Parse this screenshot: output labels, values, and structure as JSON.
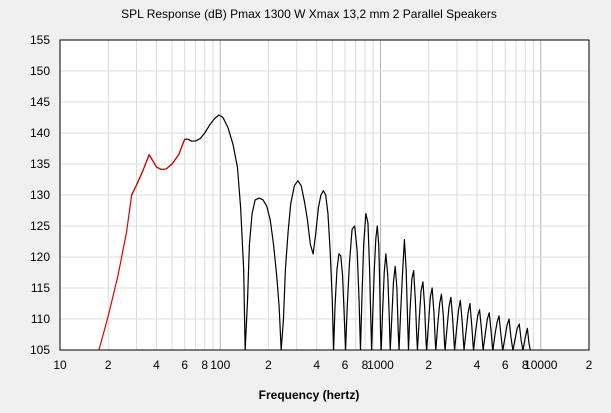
{
  "chart_data": {
    "type": "line",
    "title": "SPL Response (dB)   Pmax 1300 W   Xmax 13,2 mm   2 Parallel Speakers",
    "xlabel": "Frequency (hertz)",
    "ylabel": "",
    "x_scale": "log",
    "xlim": [
      10,
      20000
    ],
    "ylim": [
      105,
      155
    ],
    "grid": true,
    "legend": "none",
    "x_tick_labels": [
      {
        "value": 10,
        "label": "10"
      },
      {
        "value": 20,
        "label": "2"
      },
      {
        "value": 40,
        "label": "4"
      },
      {
        "value": 60,
        "label": "6"
      },
      {
        "value": 80,
        "label": "8"
      },
      {
        "value": 100,
        "label": "100"
      },
      {
        "value": 200,
        "label": "2"
      },
      {
        "value": 400,
        "label": "4"
      },
      {
        "value": 600,
        "label": "6"
      },
      {
        "value": 800,
        "label": "8"
      },
      {
        "value": 1000,
        "label": "1000"
      },
      {
        "value": 2000,
        "label": "2"
      },
      {
        "value": 4000,
        "label": "4"
      },
      {
        "value": 6000,
        "label": "6"
      },
      {
        "value": 8000,
        "label": "8"
      },
      {
        "value": 10000,
        "label": "10000"
      },
      {
        "value": 20000,
        "label": "2"
      }
    ],
    "y_ticks": [
      105,
      110,
      115,
      120,
      125,
      130,
      135,
      140,
      145,
      150,
      155
    ],
    "colors": {
      "background": "#f0f0f0",
      "plot_background": "#ffffff",
      "grid_major": "#b4b4b4",
      "grid_minor": "#dcdcdc",
      "limited_segment": "#e00000",
      "curve": "#000000"
    },
    "series": [
      {
        "segment": "excursion-limited",
        "color": "#e00000",
        "points": [
          [
            17.5,
            105
          ],
          [
            20,
            110.5
          ],
          [
            23,
            117
          ],
          [
            26,
            124
          ],
          [
            28,
            130
          ],
          [
            30,
            131.6
          ],
          [
            33,
            134
          ],
          [
            36,
            136.5
          ],
          [
            38,
            135.5
          ],
          [
            40,
            134.5
          ],
          [
            43,
            134.1
          ],
          [
            46,
            134.2
          ],
          [
            50,
            135
          ],
          [
            55,
            136.5
          ],
          [
            60,
            139.0
          ]
        ]
      },
      {
        "segment": "power-limited",
        "color": "#000000",
        "points": [
          [
            28,
            130
          ],
          [
            30,
            131.6
          ],
          [
            33,
            134
          ],
          [
            36,
            136.5
          ],
          [
            38,
            135.5
          ],
          [
            40,
            134.5
          ],
          [
            43,
            134.1
          ],
          [
            46,
            134.2
          ],
          [
            50,
            135
          ],
          [
            55,
            136.5
          ],
          [
            60,
            139.0
          ],
          [
            63,
            139
          ],
          [
            66,
            138.7
          ],
          [
            70,
            138.7
          ],
          [
            75,
            139.1
          ],
          [
            80,
            140
          ],
          [
            86,
            141.3
          ],
          [
            92,
            142.3
          ],
          [
            98,
            142.9
          ],
          [
            104,
            142.5
          ],
          [
            112,
            140.8
          ],
          [
            120,
            138.2
          ],
          [
            128,
            134.5
          ],
          [
            134,
            128
          ],
          [
            140,
            118
          ],
          [
            143,
            105
          ],
          [
            148,
            113
          ],
          [
            152,
            122
          ],
          [
            158,
            127
          ],
          [
            165,
            129.2
          ],
          [
            175,
            129.5
          ],
          [
            185,
            129.2
          ],
          [
            195,
            128.2
          ],
          [
            205,
            126
          ],
          [
            215,
            122
          ],
          [
            225,
            117
          ],
          [
            233,
            112
          ],
          [
            240,
            105
          ],
          [
            248,
            110
          ],
          [
            255,
            118
          ],
          [
            265,
            124
          ],
          [
            275,
            128.5
          ],
          [
            290,
            131.5
          ],
          [
            305,
            132.3
          ],
          [
            320,
            131.5
          ],
          [
            335,
            129
          ],
          [
            350,
            126
          ],
          [
            365,
            122
          ],
          [
            380,
            120.5
          ],
          [
            395,
            124
          ],
          [
            410,
            128
          ],
          [
            425,
            130
          ],
          [
            440,
            130.7
          ],
          [
            455,
            130
          ],
          [
            470,
            127
          ],
          [
            485,
            121
          ],
          [
            500,
            113
          ],
          [
            510,
            105
          ],
          [
            520,
            112
          ],
          [
            535,
            118
          ],
          [
            550,
            120.5
          ],
          [
            565,
            120.2
          ],
          [
            580,
            117
          ],
          [
            595,
            110
          ],
          [
            605,
            105
          ],
          [
            620,
            112
          ],
          [
            640,
            119
          ],
          [
            665,
            124.5
          ],
          [
            690,
            125
          ],
          [
            715,
            121
          ],
          [
            735,
            113
          ],
          [
            750,
            105
          ],
          [
            765,
            113
          ],
          [
            785,
            122
          ],
          [
            810,
            127
          ],
          [
            835,
            125.5
          ],
          [
            855,
            118
          ],
          [
            870,
            110
          ],
          [
            880,
            105
          ],
          [
            895,
            111
          ],
          [
            915,
            118
          ],
          [
            935,
            123
          ],
          [
            955,
            125
          ],
          [
            975,
            122
          ],
          [
            990,
            115
          ],
          [
            1000,
            108
          ],
          [
            1010,
            105
          ],
          [
            1030,
            111
          ],
          [
            1055,
            117.5
          ],
          [
            1080,
            120.5
          ],
          [
            1110,
            117
          ],
          [
            1135,
            110
          ],
          [
            1150,
            105
          ],
          [
            1175,
            110
          ],
          [
            1205,
            116
          ],
          [
            1235,
            118.5
          ],
          [
            1265,
            115
          ],
          [
            1290,
            108
          ],
          [
            1305,
            105
          ],
          [
            1335,
            111
          ],
          [
            1370,
            117
          ],
          [
            1410,
            122.8
          ],
          [
            1445,
            118
          ],
          [
            1475,
            110
          ],
          [
            1495,
            105
          ],
          [
            1525,
            111
          ],
          [
            1570,
            116.5
          ],
          [
            1610,
            117.8
          ],
          [
            1650,
            113
          ],
          [
            1685,
            107
          ],
          [
            1700,
            105
          ],
          [
            1745,
            110
          ],
          [
            1790,
            114.5
          ],
          [
            1840,
            116
          ],
          [
            1885,
            112
          ],
          [
            1925,
            106
          ],
          [
            1940,
            105
          ],
          [
            1990,
            109
          ],
          [
            2045,
            113.5
          ],
          [
            2100,
            115
          ],
          [
            2155,
            111
          ],
          [
            2200,
            106
          ],
          [
            2215,
            105
          ],
          [
            2275,
            109
          ],
          [
            2340,
            112.5
          ],
          [
            2400,
            114
          ],
          [
            2465,
            110.5
          ],
          [
            2510,
            106
          ],
          [
            2530,
            105
          ],
          [
            2600,
            108.5
          ],
          [
            2675,
            112
          ],
          [
            2750,
            113.5
          ],
          [
            2820,
            110
          ],
          [
            2880,
            106
          ],
          [
            2900,
            105
          ],
          [
            2985,
            108.5
          ],
          [
            3070,
            111.5
          ],
          [
            3150,
            113
          ],
          [
            3235,
            109.5
          ],
          [
            3300,
            106
          ],
          [
            3320,
            105
          ],
          [
            3420,
            108
          ],
          [
            3520,
            111
          ],
          [
            3615,
            112.5
          ],
          [
            3710,
            109
          ],
          [
            3790,
            105.5
          ],
          [
            3810,
            105
          ],
          [
            3920,
            108
          ],
          [
            4040,
            110.5
          ],
          [
            4150,
            111.5
          ],
          [
            4260,
            108.5
          ],
          [
            4350,
            105.5
          ],
          [
            4370,
            105
          ],
          [
            4500,
            107.5
          ],
          [
            4640,
            110
          ],
          [
            4770,
            111
          ],
          [
            4900,
            108
          ],
          [
            5000,
            105.3
          ],
          [
            5030,
            105
          ],
          [
            5180,
            107.5
          ],
          [
            5340,
            109.5
          ],
          [
            5490,
            110.5
          ],
          [
            5640,
            107.5
          ],
          [
            5770,
            105.2
          ],
          [
            5800,
            105
          ],
          [
            5980,
            107
          ],
          [
            6160,
            109
          ],
          [
            6340,
            110
          ],
          [
            6520,
            107
          ],
          [
            6680,
            105.2
          ],
          [
            6710,
            105
          ],
          [
            6920,
            106.8
          ],
          [
            7130,
            108.5
          ],
          [
            7340,
            109.2
          ],
          [
            7550,
            106.5
          ],
          [
            7720,
            105.1
          ],
          [
            7750,
            105
          ],
          [
            8000,
            107
          ],
          [
            8250,
            108.5
          ],
          [
            8450,
            106
          ],
          [
            8600,
            105
          ]
        ]
      }
    ]
  }
}
